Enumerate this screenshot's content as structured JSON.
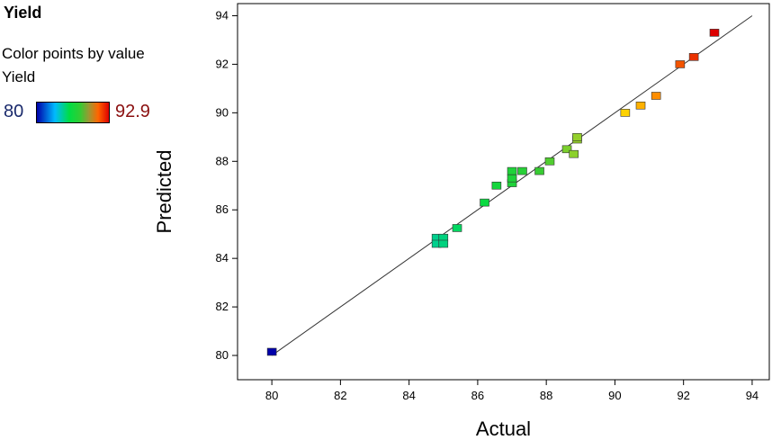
{
  "legend": {
    "title": "Yield",
    "line1": "Color points by value",
    "line2": "Yield",
    "min_label": "80",
    "max_label": "92.9",
    "colors": [
      "#0000aa",
      "#00bbff",
      "#00dd44",
      "#999933",
      "#ff6600",
      "#dd0000"
    ]
  },
  "chart_data": {
    "type": "scatter",
    "xlabel": "Actual",
    "ylabel": "Predicted",
    "xlim": [
      79,
      94.5
    ],
    "ylim": [
      79,
      94.5
    ],
    "xticks": [
      80,
      82,
      84,
      86,
      88,
      90,
      92,
      94
    ],
    "yticks": [
      80,
      82,
      84,
      86,
      88,
      90,
      92,
      94
    ],
    "reference_line": [
      [
        80,
        80
      ],
      [
        94,
        94
      ]
    ],
    "color_range": [
      80,
      92.9
    ],
    "points": [
      {
        "x": 80.0,
        "y": 80.15
      },
      {
        "x": 84.8,
        "y": 84.85
      },
      {
        "x": 84.8,
        "y": 84.6
      },
      {
        "x": 85.0,
        "y": 84.85
      },
      {
        "x": 85.0,
        "y": 84.6
      },
      {
        "x": 85.4,
        "y": 85.25
      },
      {
        "x": 86.2,
        "y": 86.3
      },
      {
        "x": 86.55,
        "y": 87.0
      },
      {
        "x": 87.0,
        "y": 87.1
      },
      {
        "x": 87.0,
        "y": 87.3
      },
      {
        "x": 87.0,
        "y": 87.6
      },
      {
        "x": 87.3,
        "y": 87.6
      },
      {
        "x": 87.8,
        "y": 87.6
      },
      {
        "x": 88.1,
        "y": 88.0
      },
      {
        "x": 88.6,
        "y": 88.5
      },
      {
        "x": 88.8,
        "y": 88.3
      },
      {
        "x": 88.9,
        "y": 88.9
      },
      {
        "x": 88.9,
        "y": 89.0
      },
      {
        "x": 90.3,
        "y": 90.0
      },
      {
        "x": 90.75,
        "y": 90.3
      },
      {
        "x": 91.2,
        "y": 90.7
      },
      {
        "x": 91.9,
        "y": 92.0
      },
      {
        "x": 92.3,
        "y": 92.3
      },
      {
        "x": 92.9,
        "y": 93.3
      }
    ]
  }
}
